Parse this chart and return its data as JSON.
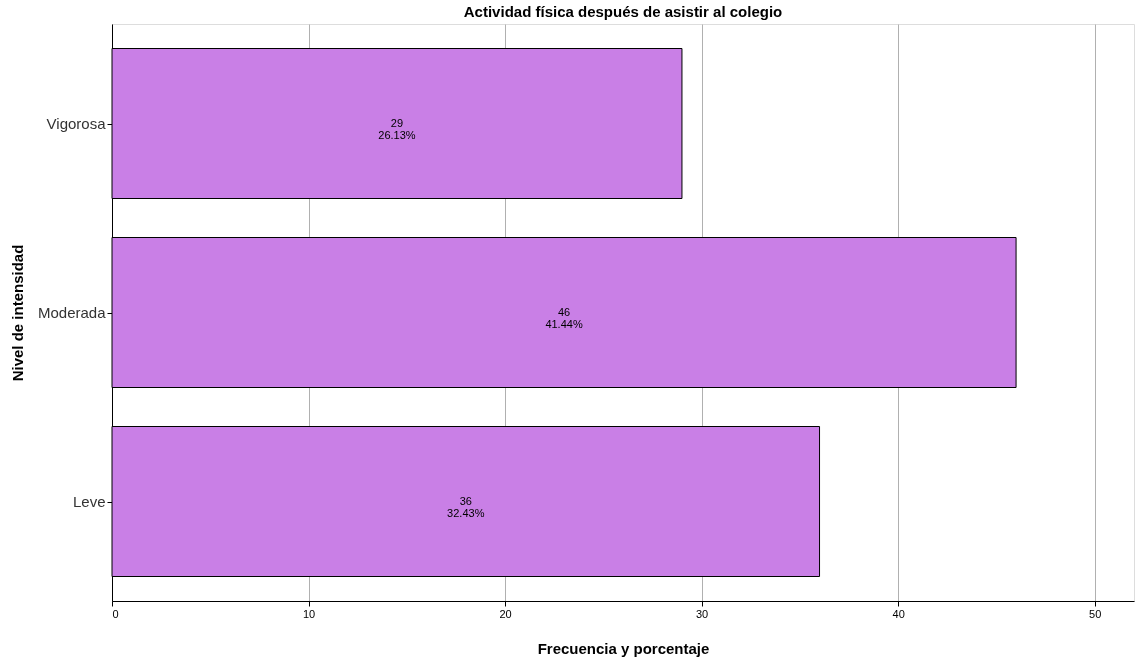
{
  "chart_data": {
    "type": "bar",
    "orientation": "horizontal",
    "title": "Actividad física después de asistir al colegio",
    "xlabel": "Frecuencia y porcentaje",
    "ylabel": "Nivel de intensidad",
    "categories": [
      "Vigorosa",
      "Moderada",
      "Leve"
    ],
    "values": [
      29,
      46,
      36
    ],
    "color": "#c97fe6",
    "value_labels": [
      "29\n26.13%",
      "46\n41.44%",
      "36\n32.43%"
    ],
    "xlim": [
      0,
      52
    ],
    "xticks": [
      0,
      10,
      20,
      30,
      40,
      50
    ],
    "grid": "x"
  }
}
